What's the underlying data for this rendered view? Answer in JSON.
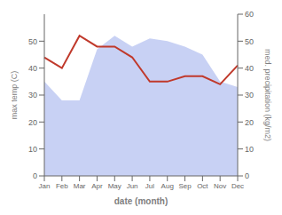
{
  "chart_data": {
    "type": "line",
    "xlabel": "date (month)",
    "ylabel": "max temp (C)",
    "y2label": "med. precipitation (kg/m2)",
    "categories": [
      "Jan",
      "Feb",
      "Mar",
      "Apr",
      "May",
      "Jun",
      "Jul",
      "Aug",
      "Sep",
      "Oct",
      "Nov",
      "Dec"
    ],
    "series": [
      {
        "type": "area",
        "color": "#b0bef0",
        "values": [
          35,
          28,
          28,
          47,
          52,
          48,
          51,
          50,
          48,
          45,
          35,
          33
        ]
      },
      {
        "type": "line",
        "color": "#c0392b",
        "axis": "y2",
        "values": [
          44,
          40,
          52,
          48,
          48,
          44,
          35,
          35,
          37,
          37,
          34,
          41
        ]
      }
    ],
    "ylim": [
      0,
      60
    ],
    "yticks": [
      0,
      10,
      20,
      30,
      40,
      50
    ],
    "y2lim": [
      0,
      60
    ],
    "y2ticks": [
      0,
      10,
      20,
      30,
      40,
      50,
      60
    ],
    "grid": false
  }
}
